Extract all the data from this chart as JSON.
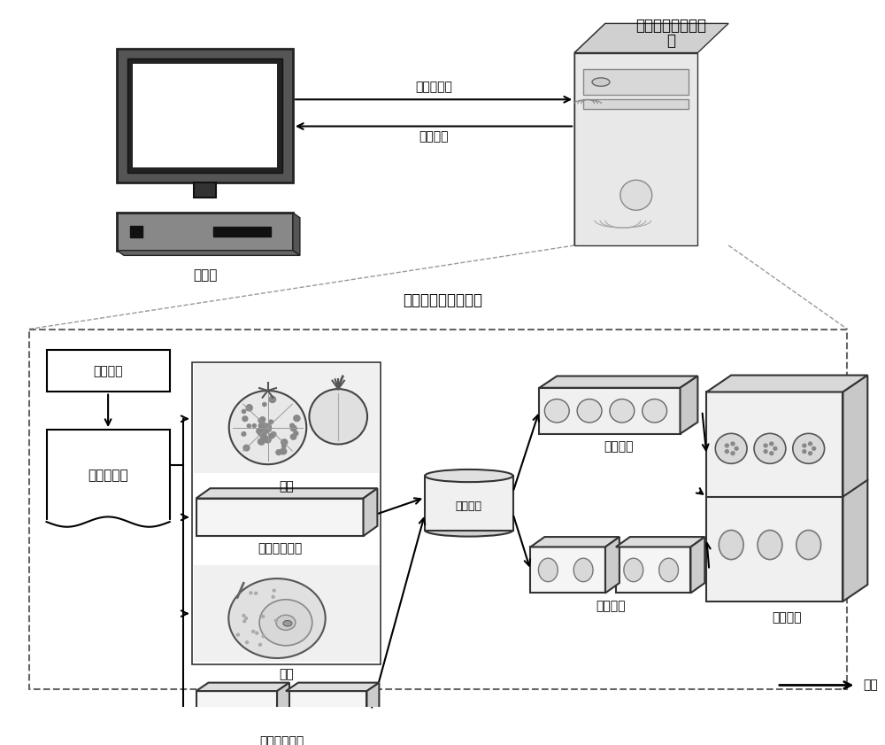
{
  "title_top_line1": "货品的自动分拣装",
  "title_top_line2": "置",
  "title_middle": "货品的自动分拣过程",
  "label_request": "请求端",
  "label_pending_order_top": "待处理订单",
  "label_target_goods_top": "目标货品",
  "label_dispatch": "调度单元",
  "label_pending_order": "待处理订单",
  "label_goods1": "货品",
  "label_storage1": "货品存储单元",
  "label_goods2": "货品",
  "label_storage2": "货品存储单元",
  "label_sort_unit": "分拣单元",
  "label_sort_goods1": "分拣货品",
  "label_sort_goods2": "分拣货品",
  "label_target_goods": "目标货品",
  "label_output": "输出",
  "bg_color": "#ffffff",
  "font_size": 10,
  "font_size_title": 11
}
